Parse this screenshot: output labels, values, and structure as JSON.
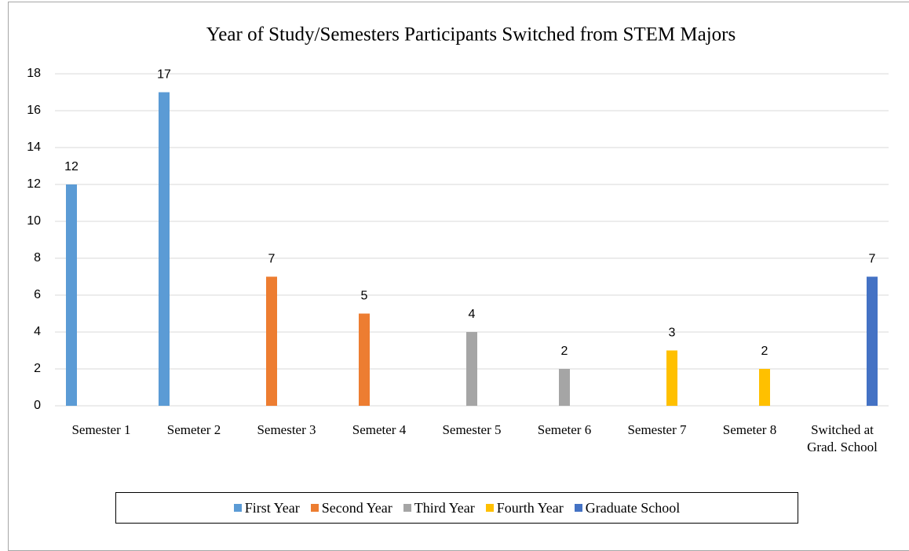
{
  "chart_data": {
    "type": "bar",
    "title": "Year of Study/Semesters Participants Switched from STEM Majors",
    "categories": [
      "Semester 1",
      "Semeter 2",
      "Semester 3",
      "Semeter 4",
      "Semester 5",
      "Semeter 6",
      "Semester 7",
      "Semeter 8",
      "Switched at Grad. School"
    ],
    "series": [
      {
        "name": "First Year",
        "color": "#5b9bd5",
        "values": [
          12,
          17,
          null,
          null,
          null,
          null,
          null,
          null,
          null
        ]
      },
      {
        "name": "Second Year",
        "color": "#ed7d31",
        "values": [
          null,
          null,
          7,
          5,
          null,
          null,
          null,
          null,
          null
        ]
      },
      {
        "name": "Third Year",
        "color": "#a5a5a5",
        "values": [
          null,
          null,
          null,
          null,
          4,
          2,
          null,
          null,
          null
        ]
      },
      {
        "name": "Fourth Year",
        "color": "#ffc000",
        "values": [
          null,
          null,
          null,
          null,
          null,
          null,
          3,
          2,
          null
        ]
      },
      {
        "name": "Graduate School",
        "color": "#4472c4",
        "values": [
          null,
          null,
          null,
          null,
          null,
          null,
          null,
          null,
          7
        ]
      }
    ],
    "ylim": [
      0,
      18
    ],
    "yticks": [
      0,
      2,
      4,
      6,
      8,
      10,
      12,
      14,
      16,
      18
    ],
    "grid": true,
    "legend": "bottom"
  }
}
